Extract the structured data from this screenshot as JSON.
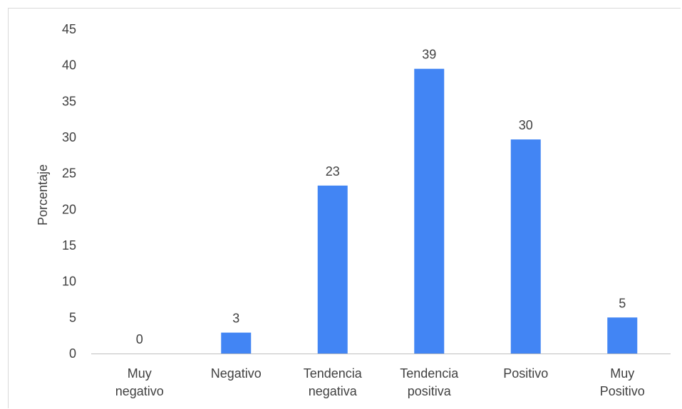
{
  "chart_data": {
    "type": "bar",
    "categories": [
      [
        "Muy",
        "negativo"
      ],
      [
        "Negativo"
      ],
      [
        "Tendencia",
        "negativa"
      ],
      [
        "Tendencia",
        "positiva"
      ],
      [
        "Positivo"
      ],
      [
        "Muy",
        "Positivo"
      ]
    ],
    "values": [
      0,
      3,
      23,
      39,
      30,
      5
    ],
    "data_labels": [
      "0",
      "3",
      "23",
      "39",
      "30",
      "5"
    ],
    "bar_values": [
      0,
      2.9,
      23.3,
      39.5,
      29.7,
      5.0
    ],
    "title": "",
    "xlabel": "",
    "ylabel": "Porcentaje",
    "ylim": [
      0,
      45
    ],
    "yticks": [
      0,
      5,
      10,
      15,
      20,
      25,
      30,
      35,
      40,
      45
    ],
    "grid": false,
    "legend": "none",
    "bar_color": "#4285f4",
    "axis_color": "#bfbfbf",
    "text_color": "#404040"
  }
}
